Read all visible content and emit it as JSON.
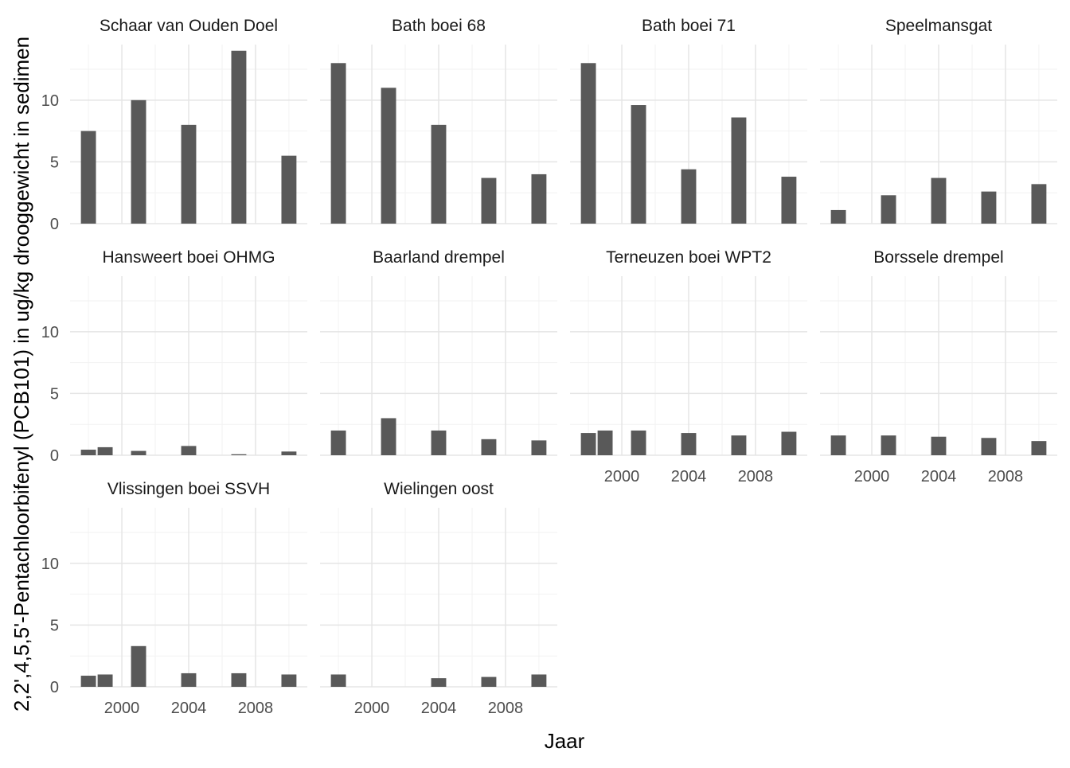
{
  "chart_data": {
    "type": "bar",
    "facet_layout": "wrap",
    "xlabel": "Jaar",
    "ylabel": "2,2',4,5,5'-Pentachloorbifenyl (PCB101) in ug/kg drooggewicht in sedimen",
    "ylim": [
      0,
      14.5
    ],
    "xlim": [
      1996.9,
      2011.1
    ],
    "x_ticks": [
      2000,
      2004,
      2008
    ],
    "y_ticks": [
      0,
      5,
      10
    ],
    "grid": true,
    "bar_color": "#595959",
    "panels": [
      {
        "title": "Schaar van Ouden Doel",
        "x": [
          1998,
          2001,
          2004,
          2007,
          2010
        ],
        "values": [
          7.5,
          10.0,
          8.0,
          14.0,
          5.5
        ]
      },
      {
        "title": "Bath boei 68",
        "x": [
          1998,
          2001,
          2004,
          2007,
          2010
        ],
        "values": [
          13.0,
          11.0,
          8.0,
          3.7,
          4.0
        ]
      },
      {
        "title": "Bath boei 71",
        "x": [
          1998,
          2001,
          2004,
          2007,
          2010
        ],
        "values": [
          13.0,
          9.6,
          4.4,
          8.6,
          3.8
        ]
      },
      {
        "title": "Speelmansgat",
        "x": [
          1998,
          2001,
          2004,
          2007,
          2010
        ],
        "values": [
          1.1,
          2.3,
          3.7,
          2.6,
          3.2
        ]
      },
      {
        "title": "Hansweert boei OHMG",
        "x": [
          1998,
          1999,
          2001,
          2004,
          2007,
          2010
        ],
        "values": [
          0.45,
          0.65,
          0.35,
          0.75,
          0.08,
          0.3
        ]
      },
      {
        "title": "Baarland drempel",
        "x": [
          1998,
          2001,
          2004,
          2007,
          2010
        ],
        "values": [
          2.0,
          3.0,
          2.0,
          1.3,
          1.2
        ]
      },
      {
        "title": "Terneuzen boei WPT2",
        "x": [
          1998,
          1999,
          2001,
          2004,
          2007,
          2010
        ],
        "values": [
          1.8,
          2.0,
          2.0,
          1.8,
          1.6,
          1.9
        ]
      },
      {
        "title": "Borssele drempel",
        "x": [
          1998,
          2001,
          2004,
          2007,
          2010
        ],
        "values": [
          1.6,
          1.6,
          1.5,
          1.4,
          1.15
        ]
      },
      {
        "title": "Vlissingen boei SSVH",
        "x": [
          1998,
          1999,
          2001,
          2004,
          2007,
          2010
        ],
        "values": [
          0.9,
          1.0,
          3.3,
          1.1,
          1.1,
          1.0
        ]
      },
      {
        "title": "Wielingen oost",
        "x": [
          1998,
          2004,
          2007,
          2010
        ],
        "values": [
          1.0,
          0.7,
          0.8,
          1.0
        ]
      }
    ]
  }
}
